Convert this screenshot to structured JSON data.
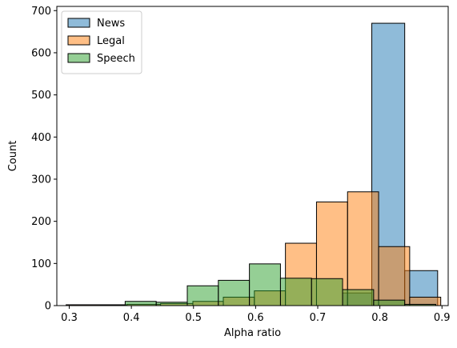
{
  "chart_data": {
    "type": "bar",
    "subtype": "histogram",
    "title": "",
    "xlabel": "Alpha ratio",
    "ylabel": "Count",
    "xlim": [
      0.28,
      0.91
    ],
    "ylim": [
      0,
      710
    ],
    "xticks": [
      "0.3",
      "0.4",
      "0.5",
      "0.6",
      "0.7",
      "0.8",
      "0.9"
    ],
    "yticks": [
      "0",
      "100",
      "200",
      "300",
      "400",
      "500",
      "600",
      "700"
    ],
    "grid": false,
    "legend_position": "top-left",
    "series": [
      {
        "name": "News",
        "color": "#1f77b4",
        "bins": [
          {
            "x0": 0.74,
            "x1": 0.787,
            "value": 30
          },
          {
            "x0": 0.787,
            "x1": 0.84,
            "value": 670
          },
          {
            "x0": 0.84,
            "x1": 0.893,
            "value": 83
          }
        ]
      },
      {
        "name": "Legal",
        "color": "#ff7f0e",
        "bins": [
          {
            "x0": 0.295,
            "x1": 0.393,
            "value": 2
          },
          {
            "x0": 0.393,
            "x1": 0.447,
            "value": 3
          },
          {
            "x0": 0.447,
            "x1": 0.499,
            "value": 5
          },
          {
            "x0": 0.499,
            "x1": 0.548,
            "value": 10
          },
          {
            "x0": 0.548,
            "x1": 0.598,
            "value": 20
          },
          {
            "x0": 0.598,
            "x1": 0.648,
            "value": 35
          },
          {
            "x0": 0.648,
            "x1": 0.698,
            "value": 148
          },
          {
            "x0": 0.698,
            "x1": 0.748,
            "value": 246
          },
          {
            "x0": 0.748,
            "x1": 0.798,
            "value": 270
          },
          {
            "x0": 0.798,
            "x1": 0.848,
            "value": 140
          },
          {
            "x0": 0.848,
            "x1": 0.898,
            "value": 20
          }
        ]
      },
      {
        "name": "Speech",
        "color": "#2ca02c",
        "bins": [
          {
            "x0": 0.35,
            "x1": 0.39,
            "value": 1
          },
          {
            "x0": 0.39,
            "x1": 0.44,
            "value": 10
          },
          {
            "x0": 0.44,
            "x1": 0.49,
            "value": 8
          },
          {
            "x0": 0.49,
            "x1": 0.54,
            "value": 47
          },
          {
            "x0": 0.54,
            "x1": 0.59,
            "value": 60
          },
          {
            "x0": 0.59,
            "x1": 0.64,
            "value": 99
          },
          {
            "x0": 0.64,
            "x1": 0.69,
            "value": 65
          },
          {
            "x0": 0.69,
            "x1": 0.74,
            "value": 64
          },
          {
            "x0": 0.74,
            "x1": 0.79,
            "value": 38
          },
          {
            "x0": 0.79,
            "x1": 0.84,
            "value": 13
          },
          {
            "x0": 0.84,
            "x1": 0.89,
            "value": 3
          }
        ]
      }
    ]
  }
}
